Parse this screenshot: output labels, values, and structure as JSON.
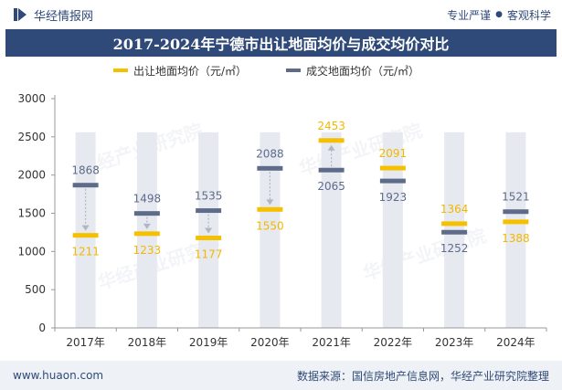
{
  "header": {
    "brand": "华经情报网",
    "tagline_left": "专业严谨",
    "tagline_sep": "●",
    "tagline_right": "客观科学"
  },
  "watermarks": [
    "华经产业研究院",
    "华经产业研究院",
    "华经产业研究院",
    "华经产业研究院"
  ],
  "footer": {
    "url": "www.huaon.com",
    "source": "数据来源：国信房地产信息网，华经产业研究院整理"
  },
  "colors": {
    "brand": "#2f4a78",
    "series_land": "#f5c000",
    "series_deal": "#5e6c8a",
    "column_bg": "#e6e9ef",
    "connector": "#b0b6c2"
  },
  "chart_data": {
    "type": "bar",
    "title": "2017-2024年宁德市出让地面均价与成交均价对比",
    "categories": [
      "2017年",
      "2018年",
      "2019年",
      "2020年",
      "2021年",
      "2022年",
      "2023年",
      "2024年"
    ],
    "series": [
      {
        "name": "出让地面均价（元/㎡）",
        "values": [
          1211,
          1233,
          1177,
          1550,
          2453,
          2091,
          1364,
          1388
        ]
      },
      {
        "name": "成交地面均价（元/㎡）",
        "values": [
          1868,
          1498,
          1535,
          2088,
          2065,
          1923,
          1252,
          1521
        ]
      }
    ],
    "yticks": [
      0,
      500,
      1000,
      1500,
      2000,
      2500,
      3000
    ],
    "ylim": [
      0,
      3000
    ],
    "xlabel": "",
    "ylabel": "",
    "legend_position": "top"
  }
}
